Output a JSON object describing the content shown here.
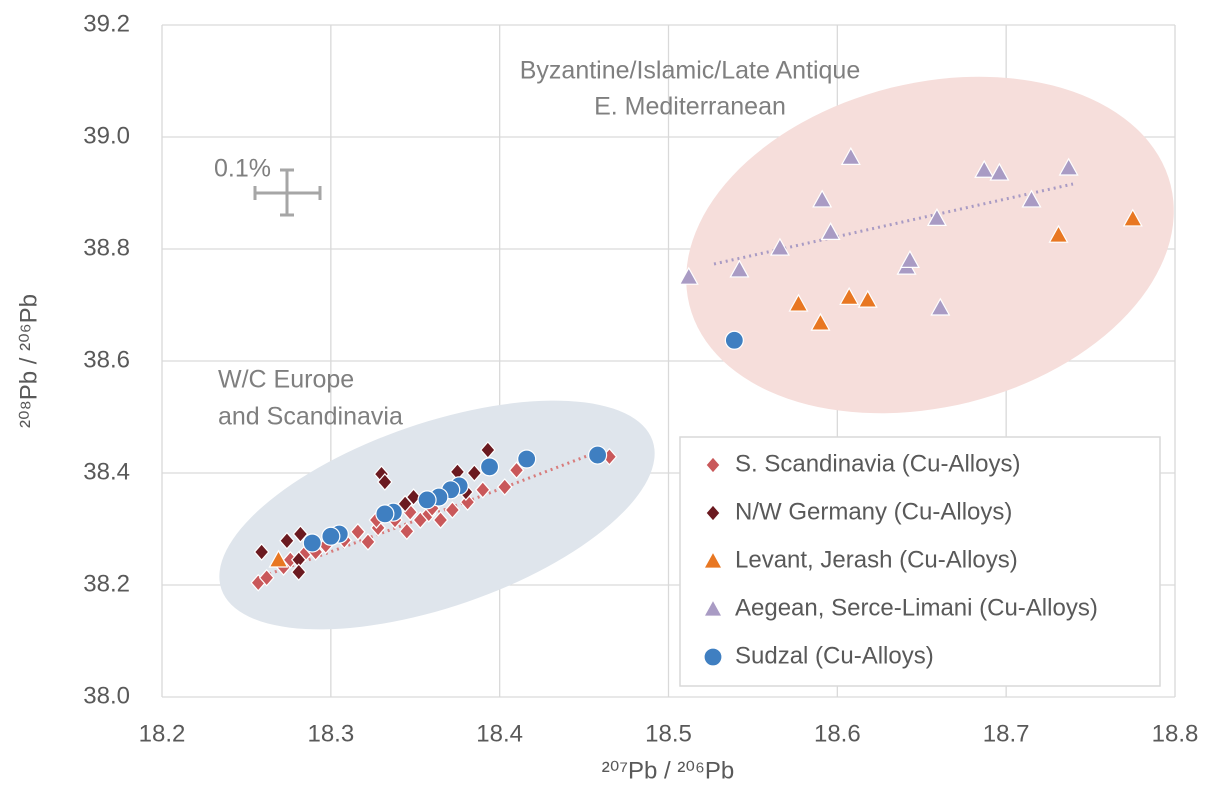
{
  "chart_data": {
    "type": "scatter",
    "x_label": "²⁰⁷Pb / ²⁰⁶Pb",
    "y_label": "²⁰⁸Pb / ²⁰⁶Pb",
    "annotations": [
      "Byzantine/Islamic/Late Antique",
      "E. Mediterranean",
      "W/C Europe",
      "and Scandinavia",
      "0.1%"
    ],
    "xlim": [
      18.2,
      18.8
    ],
    "xticks": [
      18.2,
      18.3,
      18.4,
      18.5,
      18.6,
      18.7,
      18.8
    ],
    "ylim": [
      38.0,
      39.2
    ],
    "yticks": [
      {
        "value": 38.0,
        "label": "38.0"
      },
      38.2,
      38.4,
      38.6,
      38.8,
      {
        "value": 39.0,
        "label": "39.0"
      },
      39.2
    ],
    "grid": true,
    "legend": "lower right",
    "series": [
      {
        "name": "S. Scandinavia (Cu-Alloys)",
        "color": "#c9585a",
        "marker": "diamond",
        "x": [
          18.257,
          18.262,
          18.272,
          18.276,
          18.284,
          18.291,
          18.297,
          18.308,
          18.316,
          18.322,
          18.328,
          18.338,
          18.345,
          18.353,
          18.358,
          18.365,
          18.372,
          18.381,
          18.39,
          18.403,
          18.41,
          18.465,
          18.327,
          18.36,
          18.347
        ],
        "values": [
          38.204,
          38.213,
          38.232,
          38.245,
          38.254,
          38.259,
          38.271,
          38.28,
          38.295,
          38.277,
          38.302,
          38.316,
          38.296,
          38.316,
          38.327,
          38.316,
          38.334,
          38.348,
          38.37,
          38.375,
          38.405,
          38.429,
          38.316,
          38.337,
          38.33
        ]
      },
      {
        "name": "N/W Germany (Cu-Alloys)",
        "color": "#6b1a20",
        "marker": "diamond",
        "x": [
          18.259,
          18.274,
          18.281,
          18.282,
          18.281,
          18.33,
          18.332,
          18.344,
          18.349,
          18.375,
          18.385,
          18.393,
          18.38
        ],
        "values": [
          38.259,
          38.279,
          38.245,
          38.291,
          38.223,
          38.398,
          38.384,
          38.345,
          38.357,
          38.402,
          38.4,
          38.441,
          38.366
        ]
      },
      {
        "name": "Levant, Jerash (Cu-Alloys)",
        "color": "#e87722",
        "marker": "triangle",
        "x": [
          18.577,
          18.59,
          18.607,
          18.618,
          18.731,
          18.775,
          18.269
        ],
        "values": [
          38.702,
          38.668,
          38.714,
          38.709,
          38.825,
          38.854,
          38.245
        ]
      },
      {
        "name": "Aegean, Serce-Limani (Cu-Alloys)",
        "color": "#a99bc4",
        "marker": "triangle",
        "x": [
          18.512,
          18.542,
          18.566,
          18.591,
          18.596,
          18.608,
          18.641,
          18.643,
          18.659,
          18.661,
          18.687,
          18.696,
          18.715,
          18.737
        ],
        "values": [
          38.75,
          38.763,
          38.802,
          38.888,
          38.83,
          38.964,
          38.768,
          38.78,
          38.855,
          38.695,
          38.941,
          38.936,
          38.888,
          38.945
        ]
      },
      {
        "name": "Sudzal (Cu-Alloys)",
        "color": "#3f7fc1",
        "marker": "circle",
        "x": [
          18.539,
          18.458,
          18.416,
          18.394,
          18.376,
          18.371,
          18.364,
          18.357,
          18.337,
          18.332,
          18.305,
          18.3,
          18.289
        ],
        "values": [
          38.637,
          38.432,
          38.425,
          38.411,
          38.377,
          38.37,
          38.357,
          38.352,
          38.33,
          38.327,
          38.291,
          38.287,
          38.275
        ]
      }
    ]
  }
}
